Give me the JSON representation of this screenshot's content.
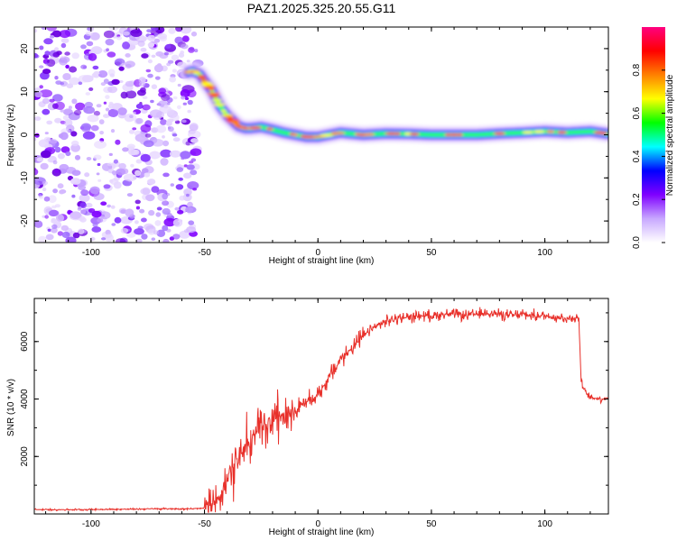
{
  "title": "PAZ1.2025.325.20.55.G11",
  "chart_data": [
    {
      "type": "heatmap",
      "title": "PAZ1.2025.325.20.55.G11",
      "xlabel": "Height of straight line (km)",
      "ylabel": "Frequency (Hz)",
      "xlim": [
        -125,
        128
      ],
      "ylim": [
        -25,
        25
      ],
      "xticks": [
        -100,
        -50,
        0,
        50,
        100
      ],
      "yticks": [
        -20,
        -10,
        0,
        10,
        20
      ],
      "xtick_labels": [
        "-100",
        "-50",
        "0",
        "50",
        "100"
      ],
      "ytick_labels": [
        "-20",
        "-10",
        "0",
        "10",
        "20"
      ],
      "noise_region_x": [
        -125,
        -56
      ],
      "ridge": {
        "x": [
          -57,
          -55,
          -52,
          -50,
          -47,
          -45,
          -43,
          -40,
          -37,
          -35,
          -32,
          -30,
          -25,
          -20,
          -15,
          -10,
          -5,
          0,
          5,
          10,
          20,
          30,
          40,
          50,
          60,
          70,
          80,
          90,
          100,
          110,
          120,
          128
        ],
        "y": [
          14.5,
          14.8,
          14.0,
          12.5,
          10.5,
          8.5,
          6.5,
          4.5,
          3.0,
          2.0,
          1.5,
          1.5,
          1.8,
          1.2,
          0.5,
          0.0,
          -0.5,
          -0.5,
          0.0,
          0.5,
          0.0,
          0.3,
          0.2,
          0.0,
          0.0,
          0.0,
          0.3,
          0.5,
          0.8,
          0.5,
          0.8,
          0.2
        ]
      },
      "colorbar": {
        "label": "Normalized spectral amplitude",
        "range": [
          0,
          1
        ],
        "ticks": [
          0.0,
          0.2,
          0.4,
          0.6,
          0.8
        ],
        "tick_labels": [
          "0.0",
          "0.2",
          "0.4",
          "0.6",
          "0.8"
        ],
        "colors": [
          "#ffffff",
          "#c8a8ff",
          "#7f00ff",
          "#0000ff",
          "#00ffff",
          "#00ff00",
          "#ffff00",
          "#ff8000",
          "#ff0000",
          "#ff0080"
        ]
      }
    },
    {
      "type": "line",
      "xlabel": "Height of straight line (km)",
      "ylabel": "SNR (10 * v/v)",
      "xlim": [
        -125,
        128
      ],
      "ylim": [
        0,
        7500
      ],
      "xticks": [
        -100,
        -50,
        0,
        50,
        100
      ],
      "yticks": [
        2000,
        4000,
        6000
      ],
      "xtick_labels": [
        "-100",
        "-50",
        "0",
        "50",
        "100"
      ],
      "ytick_labels": [
        "2000",
        "4000",
        "6000"
      ],
      "color": "#e8302a",
      "series": [
        {
          "name": "SNR",
          "x": [
            -125,
            -110,
            -90,
            -70,
            -55,
            -50,
            -47,
            -45,
            -42,
            -40,
            -38,
            -35,
            -32,
            -30,
            -27,
            -25,
            -22,
            -20,
            -17,
            -15,
            -12,
            -10,
            -7,
            -5,
            -2,
            0,
            3,
            5,
            8,
            10,
            13,
            15,
            18,
            20,
            25,
            30,
            35,
            40,
            45,
            50,
            55,
            60,
            65,
            70,
            75,
            80,
            85,
            90,
            95,
            100,
            105,
            110,
            114,
            115,
            116,
            118,
            120,
            125,
            128
          ],
          "y": [
            150,
            150,
            160,
            180,
            180,
            200,
            350,
            500,
            800,
            1200,
            1600,
            2000,
            2300,
            2700,
            2900,
            3200,
            3100,
            3300,
            3400,
            3400,
            3600,
            3600,
            3800,
            3900,
            4000,
            4200,
            4500,
            4800,
            5100,
            5400,
            5600,
            5800,
            6000,
            6200,
            6500,
            6700,
            6800,
            6850,
            6900,
            6900,
            6950,
            6950,
            6900,
            6950,
            7000,
            6950,
            6900,
            6950,
            6900,
            6900,
            6850,
            6800,
            6850,
            6800,
            4600,
            4200,
            4050,
            4000,
            4050
          ]
        }
      ]
    }
  ]
}
